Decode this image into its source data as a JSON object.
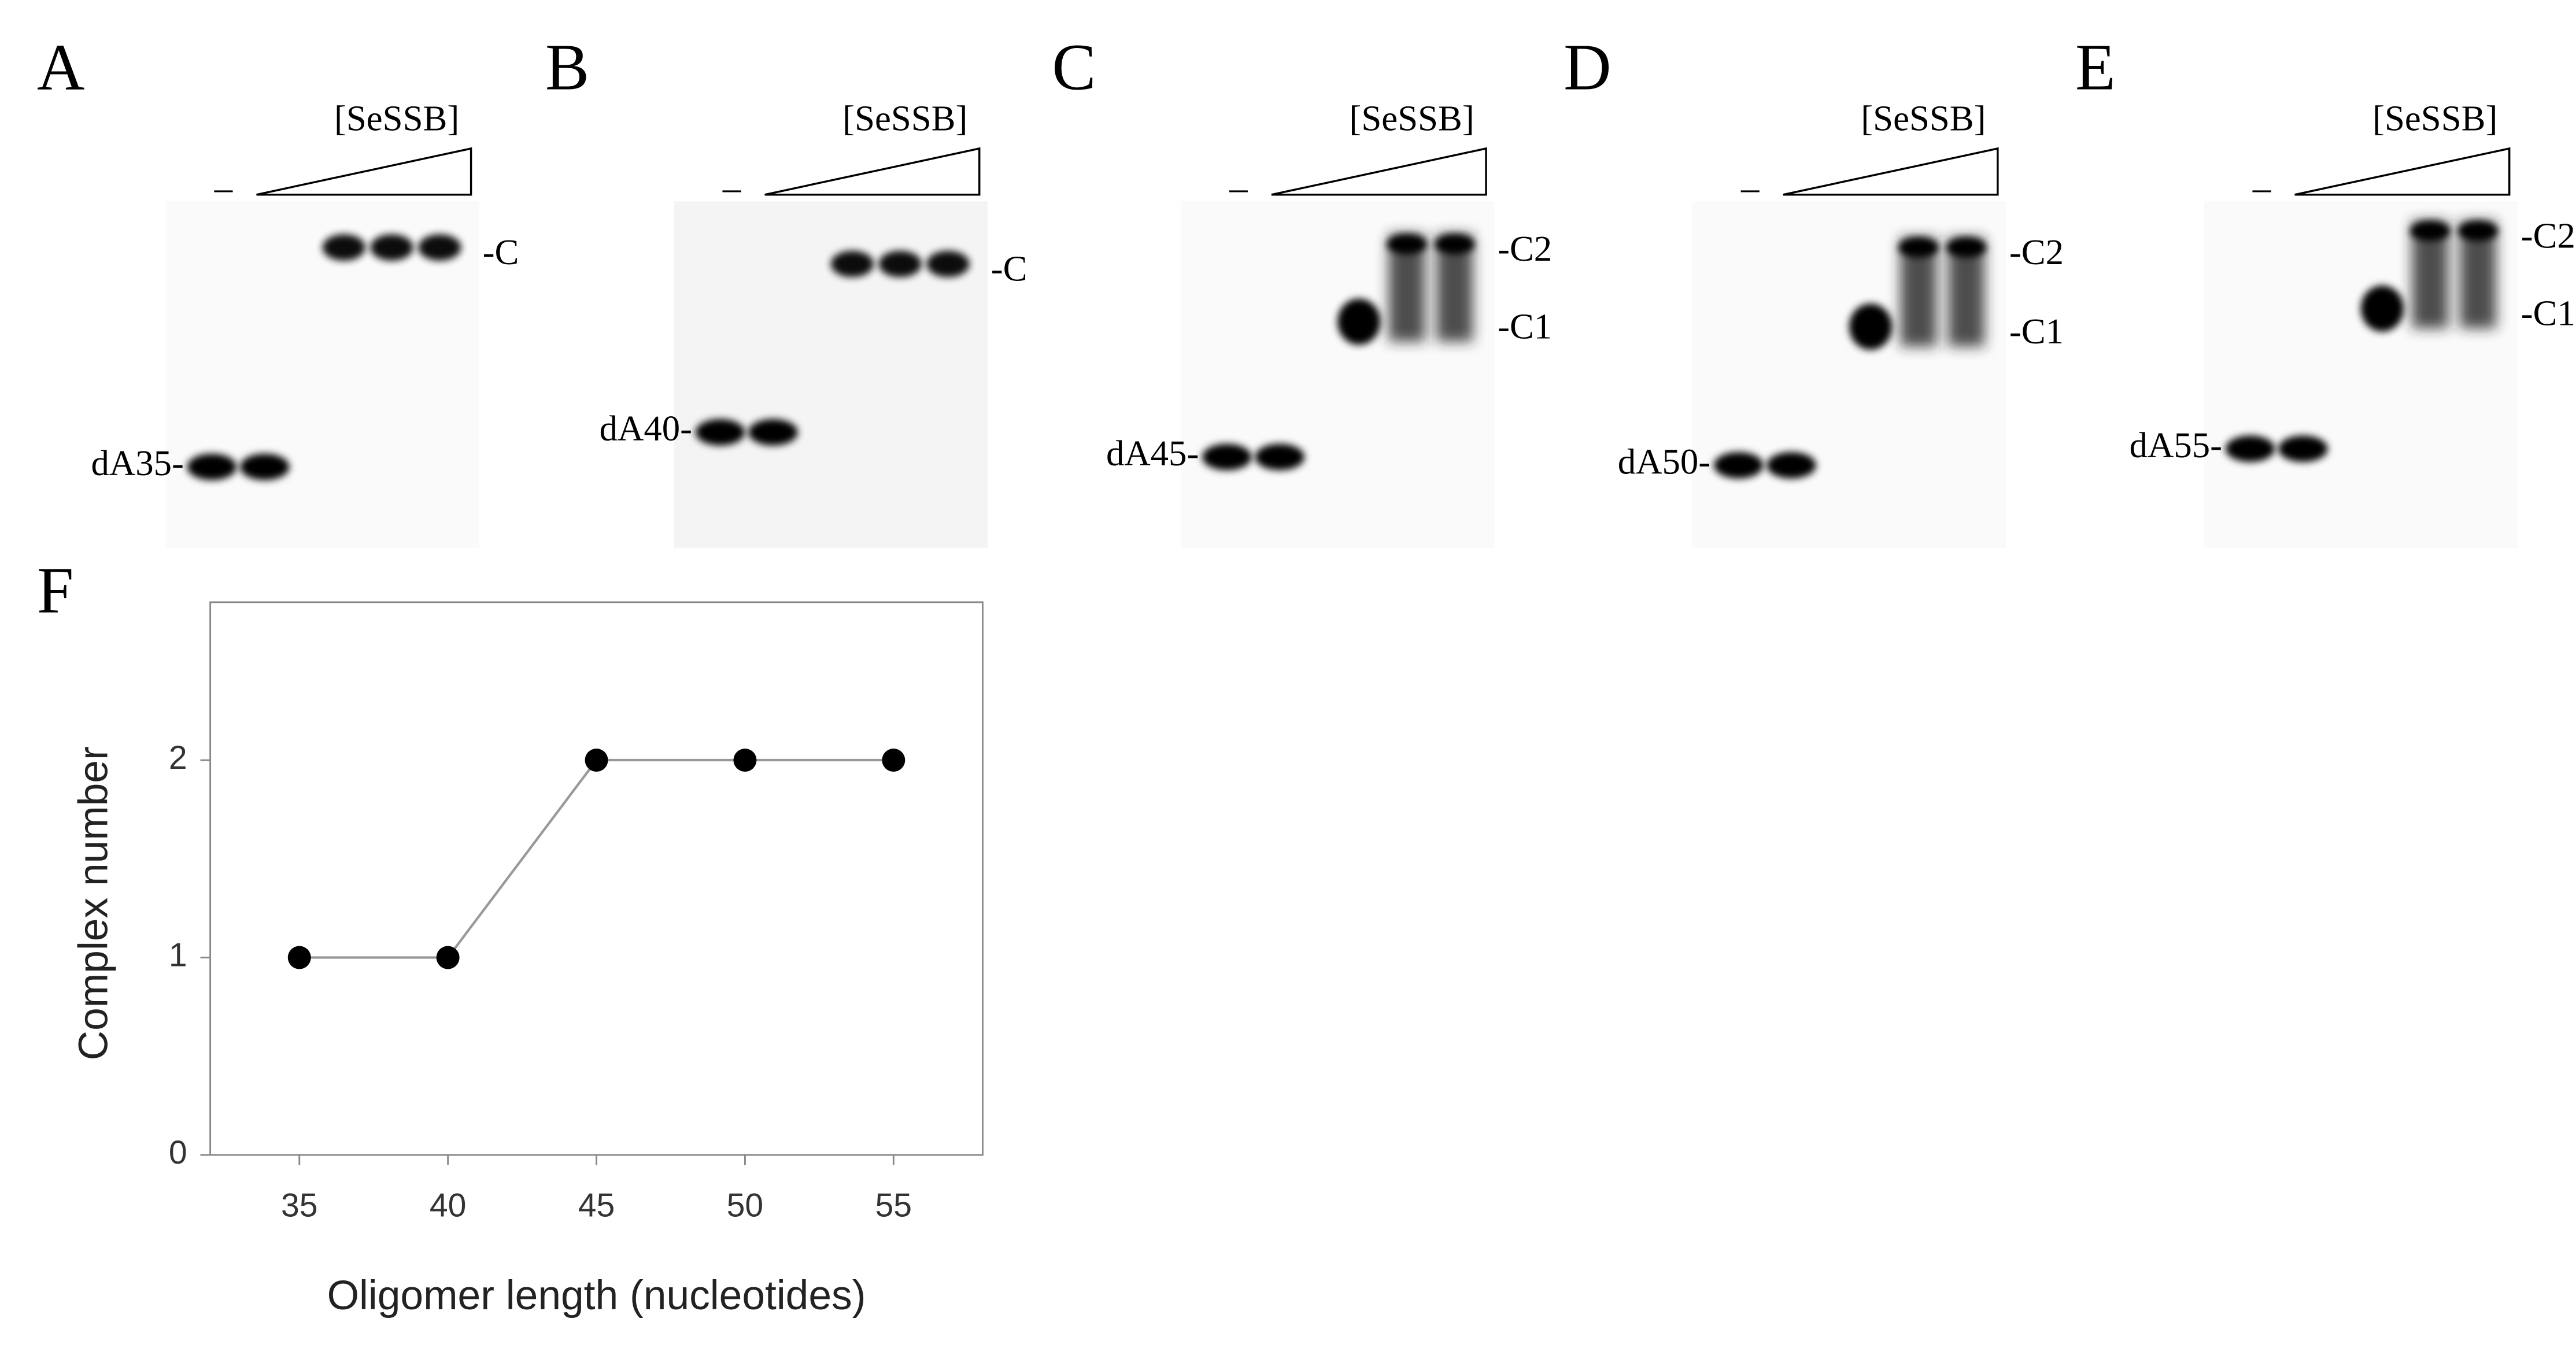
{
  "panels": [
    {
      "letter": "A",
      "protein": "[SeSSB]",
      "control": "–",
      "substrate": "dA35-",
      "complexes": [
        "-C"
      ]
    },
    {
      "letter": "B",
      "protein": "[SeSSB]",
      "control": "–",
      "substrate": "dA40-",
      "complexes": [
        "-C"
      ]
    },
    {
      "letter": "C",
      "protein": "[SeSSB]",
      "control": "–",
      "substrate": "dA45-",
      "complexes": [
        "-C2",
        "-C1"
      ]
    },
    {
      "letter": "D",
      "protein": "[SeSSB]",
      "control": "–",
      "substrate": "dA50-",
      "complexes": [
        "-C2",
        "-C1"
      ]
    },
    {
      "letter": "E",
      "protein": "[SeSSB]",
      "control": "–",
      "substrate": "dA55-",
      "complexes": [
        "-C2",
        "-C1"
      ]
    }
  ],
  "chart_data": {
    "type": "line",
    "panel": "F",
    "x": [
      35,
      40,
      45,
      50,
      55
    ],
    "values": [
      1,
      1,
      2,
      2,
      2
    ],
    "xlim": [
      32,
      58
    ],
    "ylim": [
      0,
      2.8
    ],
    "xticks": [
      35,
      40,
      45,
      50,
      55
    ],
    "yticks": [
      0,
      1,
      2
    ],
    "xlabel": "Oligomer length (nucleotides)",
    "ylabel": "Complex number",
    "color": "#000000",
    "line_color": "#999999"
  }
}
